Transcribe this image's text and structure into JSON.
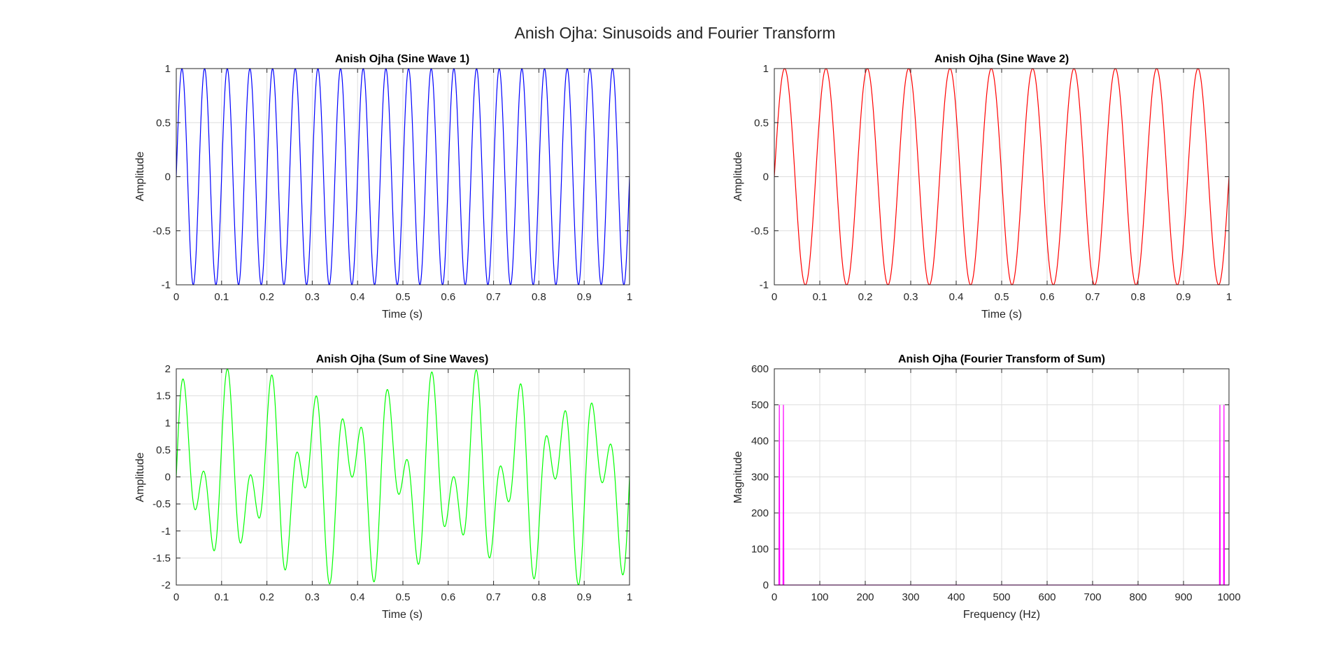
{
  "figure": {
    "title": "Anish Ojha: Sinusoids and Fourier Transform"
  },
  "chart_data": [
    {
      "type": "line",
      "title": "Anish Ojha (Sine Wave 1)",
      "xlabel": "Time (s)",
      "ylabel": "Amplitude",
      "xlim": [
        0,
        1
      ],
      "ylim": [
        -1,
        1
      ],
      "xticks": [
        "0",
        "0.1",
        "0.2",
        "0.3",
        "0.4",
        "0.5",
        "0.6",
        "0.7",
        "0.8",
        "0.9",
        "1"
      ],
      "yticks": [
        "-1",
        "-0.5",
        "0",
        "0.5",
        "1"
      ],
      "grid": true,
      "series": [
        {
          "function": "sine",
          "frequency_hz": 20,
          "amplitude": 1,
          "t_start": 0,
          "t_end": 1,
          "color": "#0000ff"
        }
      ]
    },
    {
      "type": "line",
      "title": "Anish Ojha (Sine Wave 2)",
      "xlabel": "Time (s)",
      "ylabel": "Amplitude",
      "xlim": [
        0,
        1
      ],
      "ylim": [
        -1,
        1
      ],
      "xticks": [
        "0",
        "0.1",
        "0.2",
        "0.3",
        "0.4",
        "0.5",
        "0.6",
        "0.7",
        "0.8",
        "0.9",
        "1"
      ],
      "yticks": [
        "-1",
        "-0.5",
        "0",
        "0.5",
        "1"
      ],
      "grid": true,
      "series": [
        {
          "function": "sine",
          "frequency_hz": 11,
          "amplitude": 1,
          "t_start": 0,
          "t_end": 1,
          "color": "#ff0000"
        }
      ]
    },
    {
      "type": "line",
      "title": "Anish Ojha (Sum of Sine Waves)",
      "xlabel": "Time (s)",
      "ylabel": "Amplitude",
      "xlim": [
        0,
        1
      ],
      "ylim": [
        -2,
        2
      ],
      "xticks": [
        "0",
        "0.1",
        "0.2",
        "0.3",
        "0.4",
        "0.5",
        "0.6",
        "0.7",
        "0.8",
        "0.9",
        "1"
      ],
      "yticks": [
        "-2",
        "-1.5",
        "-1",
        "-0.5",
        "0",
        "0.5",
        "1",
        "1.5",
        "2"
      ],
      "grid": true,
      "series": [
        {
          "function": "sum_of_sines",
          "components_hz": [
            20,
            11
          ],
          "amplitudes": [
            1,
            1
          ],
          "t_start": 0,
          "t_end": 1,
          "color": "#00ff00"
        }
      ]
    },
    {
      "type": "line",
      "title": "Anish Ojha (Fourier Transform of Sum)",
      "xlabel": "Frequency (Hz)",
      "ylabel": "Magnitude",
      "xlim": [
        0,
        1000
      ],
      "ylim": [
        0,
        600
      ],
      "xticks": [
        "0",
        "100",
        "200",
        "300",
        "400",
        "500",
        "600",
        "700",
        "800",
        "900",
        "1000"
      ],
      "yticks": [
        "0",
        "100",
        "200",
        "300",
        "400",
        "500",
        "600"
      ],
      "grid": true,
      "series": [
        {
          "x": [
            0,
            10,
            11,
            12,
            19,
            20,
            21,
            979,
            980,
            981,
            988,
            989,
            990,
            1000
          ],
          "y": [
            0,
            0,
            500,
            0,
            0,
            500,
            0,
            0,
            500,
            0,
            0,
            500,
            0,
            0
          ],
          "color": "#ff00ff"
        }
      ]
    }
  ]
}
